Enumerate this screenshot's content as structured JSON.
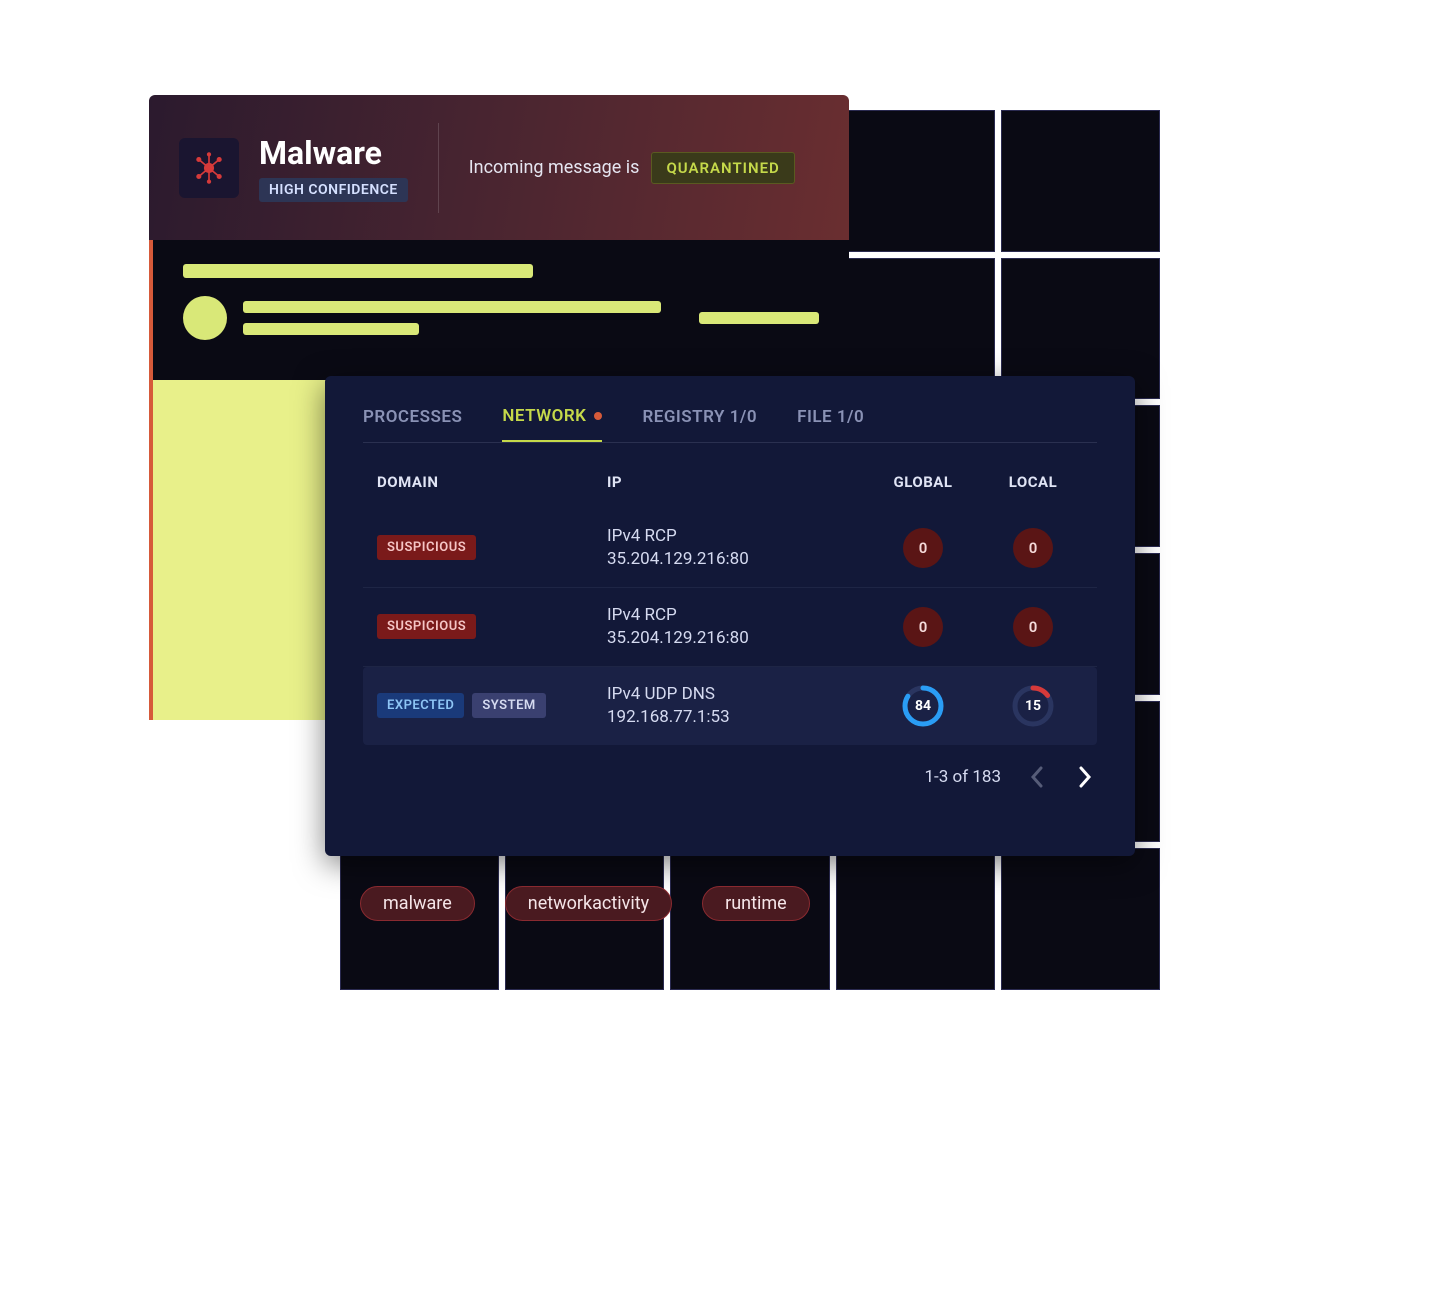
{
  "palette": {
    "header_gradient_from": "#2b1a2e",
    "header_gradient_to": "#6a2e30",
    "panel_bg": "#121838",
    "accent_lime": "#c5d94a",
    "accent_orange_dot": "#d65a3a",
    "tab_inactive": "#8a92b5",
    "text_light": "#d5daf0",
    "badge_suspicious_bg": "#7a1a1a",
    "badge_expected_bg": "#1a3a7a",
    "badge_system_bg": "#3a4070",
    "count_zero_bg": "#5a1515",
    "ring_global_color": "#2a9df5",
    "ring_local_color": "#d63a3a",
    "ring_track": "#2a3560",
    "tag_bg": "#4a1a20",
    "tag_border": "#8a2a30",
    "redacted_bg": "#e8f08a",
    "redacted_bar": "#d9e878"
  },
  "header": {
    "title": "Malware",
    "confidence": "HIGH CONFIDENCE",
    "message_prefix": "Incoming message is",
    "status": "QUARANTINED"
  },
  "tabs": [
    {
      "label": "PROCESSES",
      "active": false,
      "dot": false
    },
    {
      "label": "NETWORK",
      "active": true,
      "dot": true
    },
    {
      "label": "REGISTRY 1/0",
      "active": false,
      "dot": false
    },
    {
      "label": "FILE 1/0",
      "active": false,
      "dot": false
    }
  ],
  "table": {
    "columns": {
      "domain": "DOMAIN",
      "ip": "IP",
      "global": "GLOBAL",
      "local": "LOCAL"
    },
    "rows": [
      {
        "badges": [
          {
            "text": "SUSPICIOUS",
            "kind": "suspicious"
          }
        ],
        "ip_line1": "IPv4 RCP",
        "ip_line2": "35.204.129.216:80",
        "global": {
          "value": "0",
          "type": "zero"
        },
        "local": {
          "value": "0",
          "type": "zero"
        }
      },
      {
        "badges": [
          {
            "text": "SUSPICIOUS",
            "kind": "suspicious"
          }
        ],
        "ip_line1": "IPv4 RCP",
        "ip_line2": "35.204.129.216:80",
        "global": {
          "value": "0",
          "type": "zero"
        },
        "local": {
          "value": "0",
          "type": "zero"
        }
      },
      {
        "badges": [
          {
            "text": "EXPECTED",
            "kind": "expected"
          },
          {
            "text": "SYSTEM",
            "kind": "system"
          }
        ],
        "ip_line1": "IPv4 UDP DNS",
        "ip_line2": "192.168.77.1:53",
        "global": {
          "value": "84",
          "type": "ring",
          "pct": 84,
          "color": "#2a9df5"
        },
        "local": {
          "value": "15",
          "type": "ring",
          "pct": 15,
          "color": "#d63a3a"
        }
      }
    ]
  },
  "pagination": {
    "text": "1-3 of 183",
    "prev_enabled": false,
    "next_enabled": true
  },
  "tags": [
    "malware",
    "networkactivity",
    "runtime"
  ]
}
